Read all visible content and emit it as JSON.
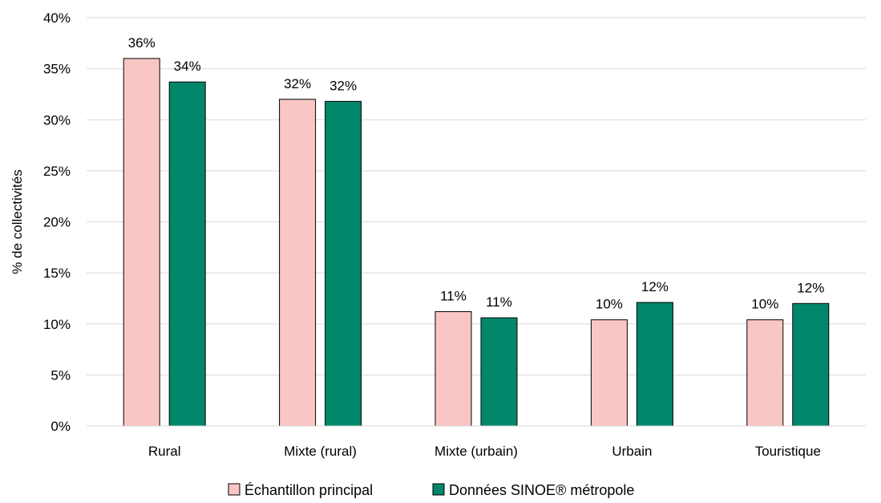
{
  "chart_data": {
    "type": "bar",
    "ylabel": "% de collectivités",
    "ylim": [
      0,
      40
    ],
    "yticks": [
      0,
      5,
      10,
      15,
      20,
      25,
      30,
      35,
      40
    ],
    "ytick_labels": [
      "0%",
      "5%",
      "10%",
      "15%",
      "20%",
      "25%",
      "30%",
      "35%",
      "40%"
    ],
    "categories": [
      "Rural",
      "Mixte (rural)",
      "Mixte (urbain)",
      "Urbain",
      "Touristique"
    ],
    "series": [
      {
        "name": "Échantillon principal",
        "color": "#f8c6c4",
        "values": [
          36.0,
          32.0,
          11.2,
          10.4,
          10.4
        ],
        "labels": [
          "36%",
          "32%",
          "11%",
          "10%",
          "10%"
        ]
      },
      {
        "name": "Données SINOE® métropole",
        "color": "#00876a",
        "values": [
          33.7,
          31.8,
          10.6,
          12.1,
          12.0
        ],
        "labels": [
          "34%",
          "32%",
          "11%",
          "12%",
          "12%"
        ]
      }
    ],
    "grid": true,
    "legend_position": "bottom"
  }
}
